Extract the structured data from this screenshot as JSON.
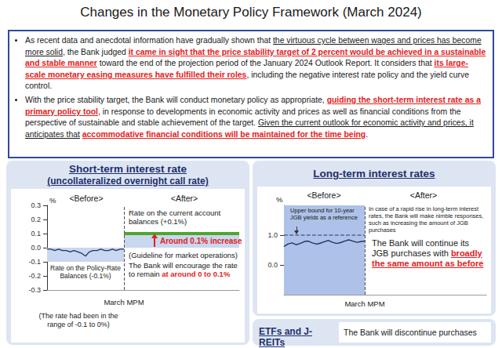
{
  "title": "Changes in the Monetary Policy Framework (March 2024)",
  "bullets": [
    [
      {
        "text": "As recent data and anecdotal information have gradually shown that ",
        "style": "plain"
      },
      {
        "text": "the virtuous cycle between wages and prices has become more solid",
        "style": "underline"
      },
      {
        "text": ", the Bank judged ",
        "style": "plain"
      },
      {
        "text": "it came in sight that the price stability target of 2 percent would be achieved in a sustainable and stable manner",
        "style": "red_bold_underline"
      },
      {
        "text": " toward the end of the projection period of the January 2024 Outlook Report. It considers that ",
        "style": "plain"
      },
      {
        "text": "its large-scale monetary easing measures have fulfilled their roles",
        "style": "red_bold_underline"
      },
      {
        "text": ", including the negative interest rate policy and the yield curve control.",
        "style": "plain"
      }
    ],
    [
      {
        "text": "With the price stability target, the Bank will conduct monetary policy as appropriate, ",
        "style": "plain"
      },
      {
        "text": "guiding the short-term interest rate as a primary policy tool",
        "style": "red_bold_underline"
      },
      {
        "text": ", in response to developments in economic activity and prices as well as financial conditions from the perspective of sustainable and stable achievement of the target. ",
        "style": "plain"
      },
      {
        "text": "Given the current outlook for economic activity and prices, it anticipates that",
        "style": "underline"
      },
      {
        "text": " ",
        "style": "plain"
      },
      {
        "text": "accommodative financial conditions will be maintained for the time being",
        "style": "red_bold_underline"
      },
      {
        "text": ".",
        "style": "plain"
      }
    ]
  ],
  "chart_data": [
    {
      "type": "line",
      "title": "Short-term interest rate",
      "subtitle": "(uncollateralized overnight call rate)",
      "y_label": "%",
      "xlim": [
        0,
        50
      ],
      "ylim": [
        -0.3,
        0.3
      ],
      "yticks": [
        0.3,
        0.2,
        0.1,
        {
          "value": 0,
          "label": "0.0"
        },
        -0.1,
        -0.2,
        -0.3
      ],
      "tick_labels": "y",
      "grid": false,
      "series": [
        {
          "x": [
            0,
            1,
            2,
            3,
            4,
            5,
            6,
            7,
            8,
            9,
            10,
            11,
            12,
            13,
            14,
            15,
            16,
            17,
            18,
            19,
            20
          ],
          "values": [
            -0.01,
            -0.01,
            -0.02,
            -0.01,
            -0.02,
            -0.02,
            -0.03,
            -0.02,
            -0.03,
            -0.04,
            -0.06,
            -0.03,
            -0.02,
            -0.02,
            -0.01,
            -0.02,
            -0.02,
            -0.01,
            -0.02,
            -0.01,
            -0.01
          ],
          "color": "#1f3864",
          "line_style": "solid"
        },
        {
          "x": [
            20,
            50
          ],
          "values": [
            0.1,
            0.1
          ],
          "color": "#4ea72e",
          "line_style": "solid"
        }
      ],
      "bands": [
        {
          "x": [
            0,
            20
          ],
          "y": [
            -0.1,
            0
          ],
          "color": "#c9d7f0"
        },
        {
          "x": [
            20,
            50
          ],
          "y": [
            0,
            0.1
          ],
          "color": "#c9d7f0"
        }
      ],
      "divider": {
        "x": 20,
        "label": "March MPM"
      },
      "annotations": [
        [
          {
            "text": "<Before>",
            "style": "plain"
          }
        ],
        [
          {
            "text": "<After>",
            "style": "plain"
          }
        ],
        [
          {
            "text": "Rate on the current account balances (+0.1%)",
            "style": "plain"
          }
        ],
        [
          {
            "text": "Around 0.1% increase",
            "style": "red_bold"
          }
        ],
        [
          {
            "text": "(Guideline for market operations)",
            "style": "plain"
          }
        ],
        [
          {
            "text": "The Bank will encourage the rate to remain ",
            "style": "plain"
          },
          {
            "text": "at around 0 to 0.1%",
            "style": "red_bold"
          }
        ],
        [
          {
            "text": "Rate on the Policy-Rate Balances (-0.1%)",
            "style": "plain"
          }
        ],
        [
          {
            "text": "(The rate had been in the range of -0.1 to 0%)",
            "style": "plain"
          }
        ]
      ]
    },
    {
      "type": "line",
      "title": "Long-term interest rates",
      "y_label": "%",
      "xlim": [
        0,
        50
      ],
      "ylim": [
        -1,
        2
      ],
      "yticks": [
        {
          "value": 1,
          "label": "1.0"
        },
        {
          "value": 0,
          "label": "0.0"
        }
      ],
      "tick_labels": "y",
      "grid": false,
      "series": [
        {
          "x": [
            0,
            1,
            2,
            3,
            4,
            5,
            6,
            7,
            8,
            9,
            10,
            11,
            12,
            13,
            14,
            15,
            16,
            17,
            18,
            19,
            20
          ],
          "values": [
            0.62,
            0.7,
            0.74,
            0.68,
            0.72,
            0.78,
            0.8,
            0.74,
            0.7,
            0.73,
            0.78,
            0.82,
            0.76,
            0.72,
            0.75,
            0.8,
            0.84,
            0.8,
            0.76,
            0.78,
            0.8
          ],
          "color": "#1f3864",
          "line_style": "solid"
        },
        {
          "x": [
            0,
            20
          ],
          "values": [
            1,
            1
          ],
          "color": "#1f3864",
          "line_style": "dashed"
        }
      ],
      "bands": [
        {
          "x": [
            0,
            20
          ],
          "y": [
            -1,
            2
          ],
          "color": "#aec1e8"
        }
      ],
      "divider": {
        "x": 20,
        "label": "March MPM"
      },
      "annotations": [
        [
          {
            "text": "<Before>",
            "style": "plain"
          }
        ],
        [
          {
            "text": "<After>",
            "style": "plain"
          }
        ],
        [
          {
            "text": "Upper bound for 10-year JGB yields as a reference",
            "style": "plain"
          }
        ],
        [
          {
            "text": "In case of a rapid rise in long-term interest rates, the Bank will make nimble responses, such as increasing the amount of JGB purchases",
            "style": "plain"
          }
        ],
        [
          {
            "text": "The Bank will continue its JGB purchases with ",
            "style": "plain"
          },
          {
            "text": "broadly the same amount as before",
            "style": "red_bold_underline"
          }
        ]
      ]
    }
  ],
  "etfs": {
    "heading": "ETFs and J-REITs",
    "text": "The Bank will discontinue purchases"
  }
}
